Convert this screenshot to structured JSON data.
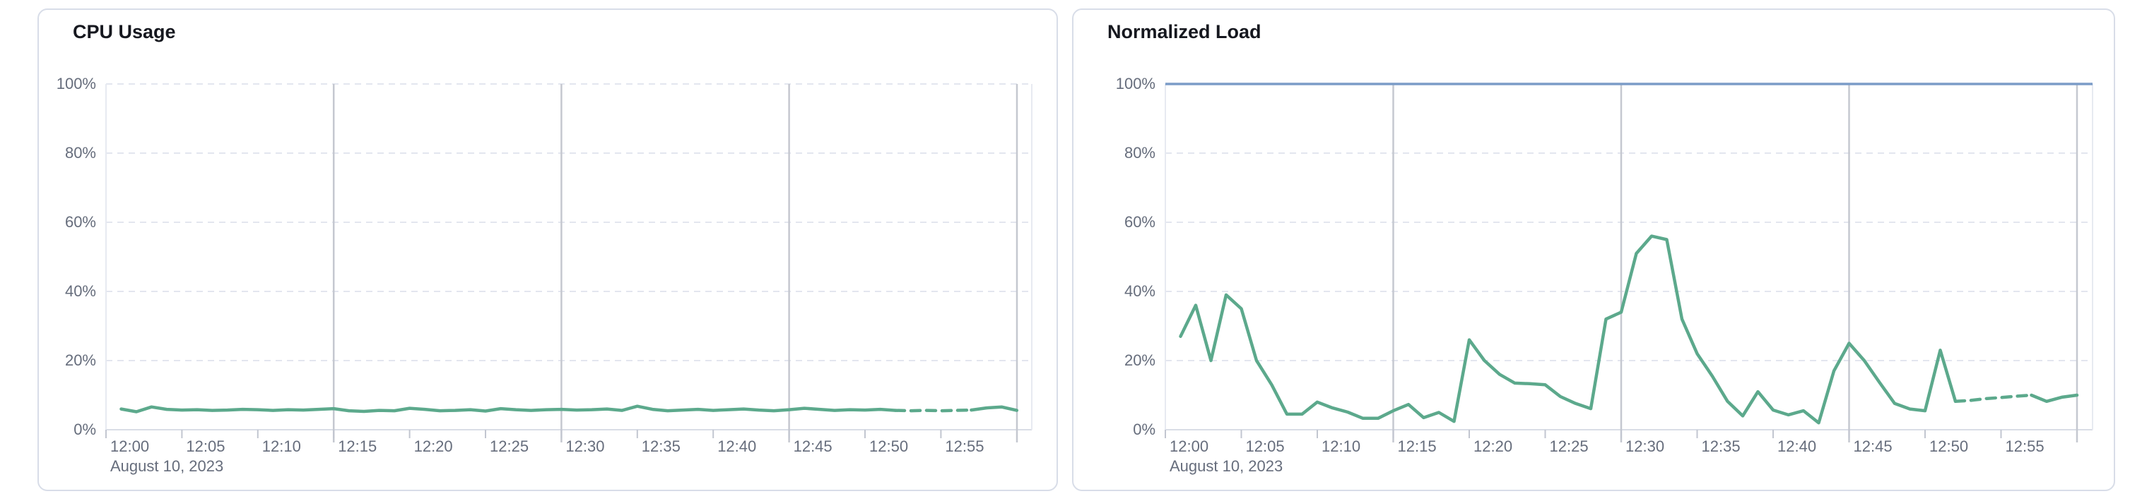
{
  "cards": [
    {
      "title": "CPU Usage"
    },
    {
      "title": "Normalized Load"
    }
  ],
  "chart_data": [
    {
      "type": "line",
      "title": "CPU Usage",
      "x_axis": {
        "date_label": "August 10, 2023",
        "tick_labels": [
          "12:00",
          "12:05",
          "12:10",
          "12:15",
          "12:20",
          "12:25",
          "12:30",
          "12:35",
          "12:40",
          "12:45",
          "12:50",
          "12:55"
        ],
        "tick_minutes": [
          0,
          5,
          10,
          15,
          20,
          25,
          30,
          35,
          40,
          45,
          50,
          55
        ],
        "major_gridline_minutes": [
          15,
          30,
          45,
          60
        ],
        "range_minutes": [
          0,
          61
        ]
      },
      "y_axis": {
        "tick_labels": [
          "0%",
          "20%",
          "40%",
          "60%",
          "80%",
          "100%"
        ],
        "tick_values": [
          0,
          20,
          40,
          60,
          80,
          100
        ],
        "range": [
          0,
          100
        ],
        "gridline_style": "dashed"
      },
      "series": [
        {
          "name": "cpu-usage",
          "color": "#5ca98c",
          "start_minute": 1,
          "interval_minutes": 1,
          "dashed_from_minute": 52,
          "dashed_to_minute": 57,
          "values": [
            6.0,
            5.2,
            6.6,
            5.9,
            5.7,
            5.8,
            5.6,
            5.7,
            5.9,
            5.8,
            5.6,
            5.8,
            5.7,
            5.9,
            6.1,
            5.5,
            5.3,
            5.6,
            5.5,
            6.2,
            5.9,
            5.5,
            5.6,
            5.8,
            5.4,
            6.1,
            5.8,
            5.6,
            5.8,
            5.9,
            5.7,
            5.8,
            6.0,
            5.6,
            6.8,
            5.9,
            5.5,
            5.7,
            5.9,
            5.6,
            5.8,
            6.0,
            5.7,
            5.5,
            5.8,
            6.2,
            5.9,
            5.6,
            5.8,
            5.7,
            5.9,
            5.6,
            5.5,
            5.6,
            5.5,
            5.6,
            5.7,
            6.3,
            6.6,
            5.6
          ]
        }
      ],
      "reference_lines": []
    },
    {
      "type": "line",
      "title": "Normalized Load",
      "x_axis": {
        "date_label": "August 10, 2023",
        "tick_labels": [
          "12:00",
          "12:05",
          "12:10",
          "12:15",
          "12:20",
          "12:25",
          "12:30",
          "12:35",
          "12:40",
          "12:45",
          "12:50",
          "12:55"
        ],
        "tick_minutes": [
          0,
          5,
          10,
          15,
          20,
          25,
          30,
          35,
          40,
          45,
          50,
          55
        ],
        "major_gridline_minutes": [
          15,
          30,
          45,
          60
        ],
        "range_minutes": [
          0,
          61
        ]
      },
      "y_axis": {
        "tick_labels": [
          "0%",
          "20%",
          "40%",
          "60%",
          "80%",
          "100%"
        ],
        "tick_values": [
          0,
          20,
          40,
          60,
          80,
          100
        ],
        "range": [
          0,
          100
        ],
        "gridline_style": "dashed"
      },
      "series": [
        {
          "name": "normalized-load",
          "color": "#5ca98c",
          "start_minute": 1,
          "interval_minutes": 1,
          "dashed_from_minute": 52,
          "dashed_to_minute": 57,
          "values": [
            27,
            36,
            20,
            39,
            35,
            20,
            13,
            4.5,
            4.5,
            8,
            6.3,
            5.1,
            3.3,
            3.3,
            5.5,
            7.3,
            3.5,
            5,
            2.4,
            26,
            20,
            16,
            13.5,
            13.3,
            13,
            9.6,
            7.6,
            6.1,
            32,
            34,
            51,
            56,
            55,
            32,
            22,
            15.5,
            8.2,
            4,
            11,
            5.7,
            4.3,
            5.5,
            2,
            17,
            25,
            20,
            13.7,
            7.6,
            6,
            5.5,
            23,
            8.2,
            8.5,
            9,
            9.3,
            9.7,
            10,
            8.2,
            9.4,
            10
          ]
        }
      ],
      "reference_lines": [
        {
          "name": "load-limit",
          "value": 100,
          "color": "#7b9cc7"
        }
      ]
    }
  ]
}
